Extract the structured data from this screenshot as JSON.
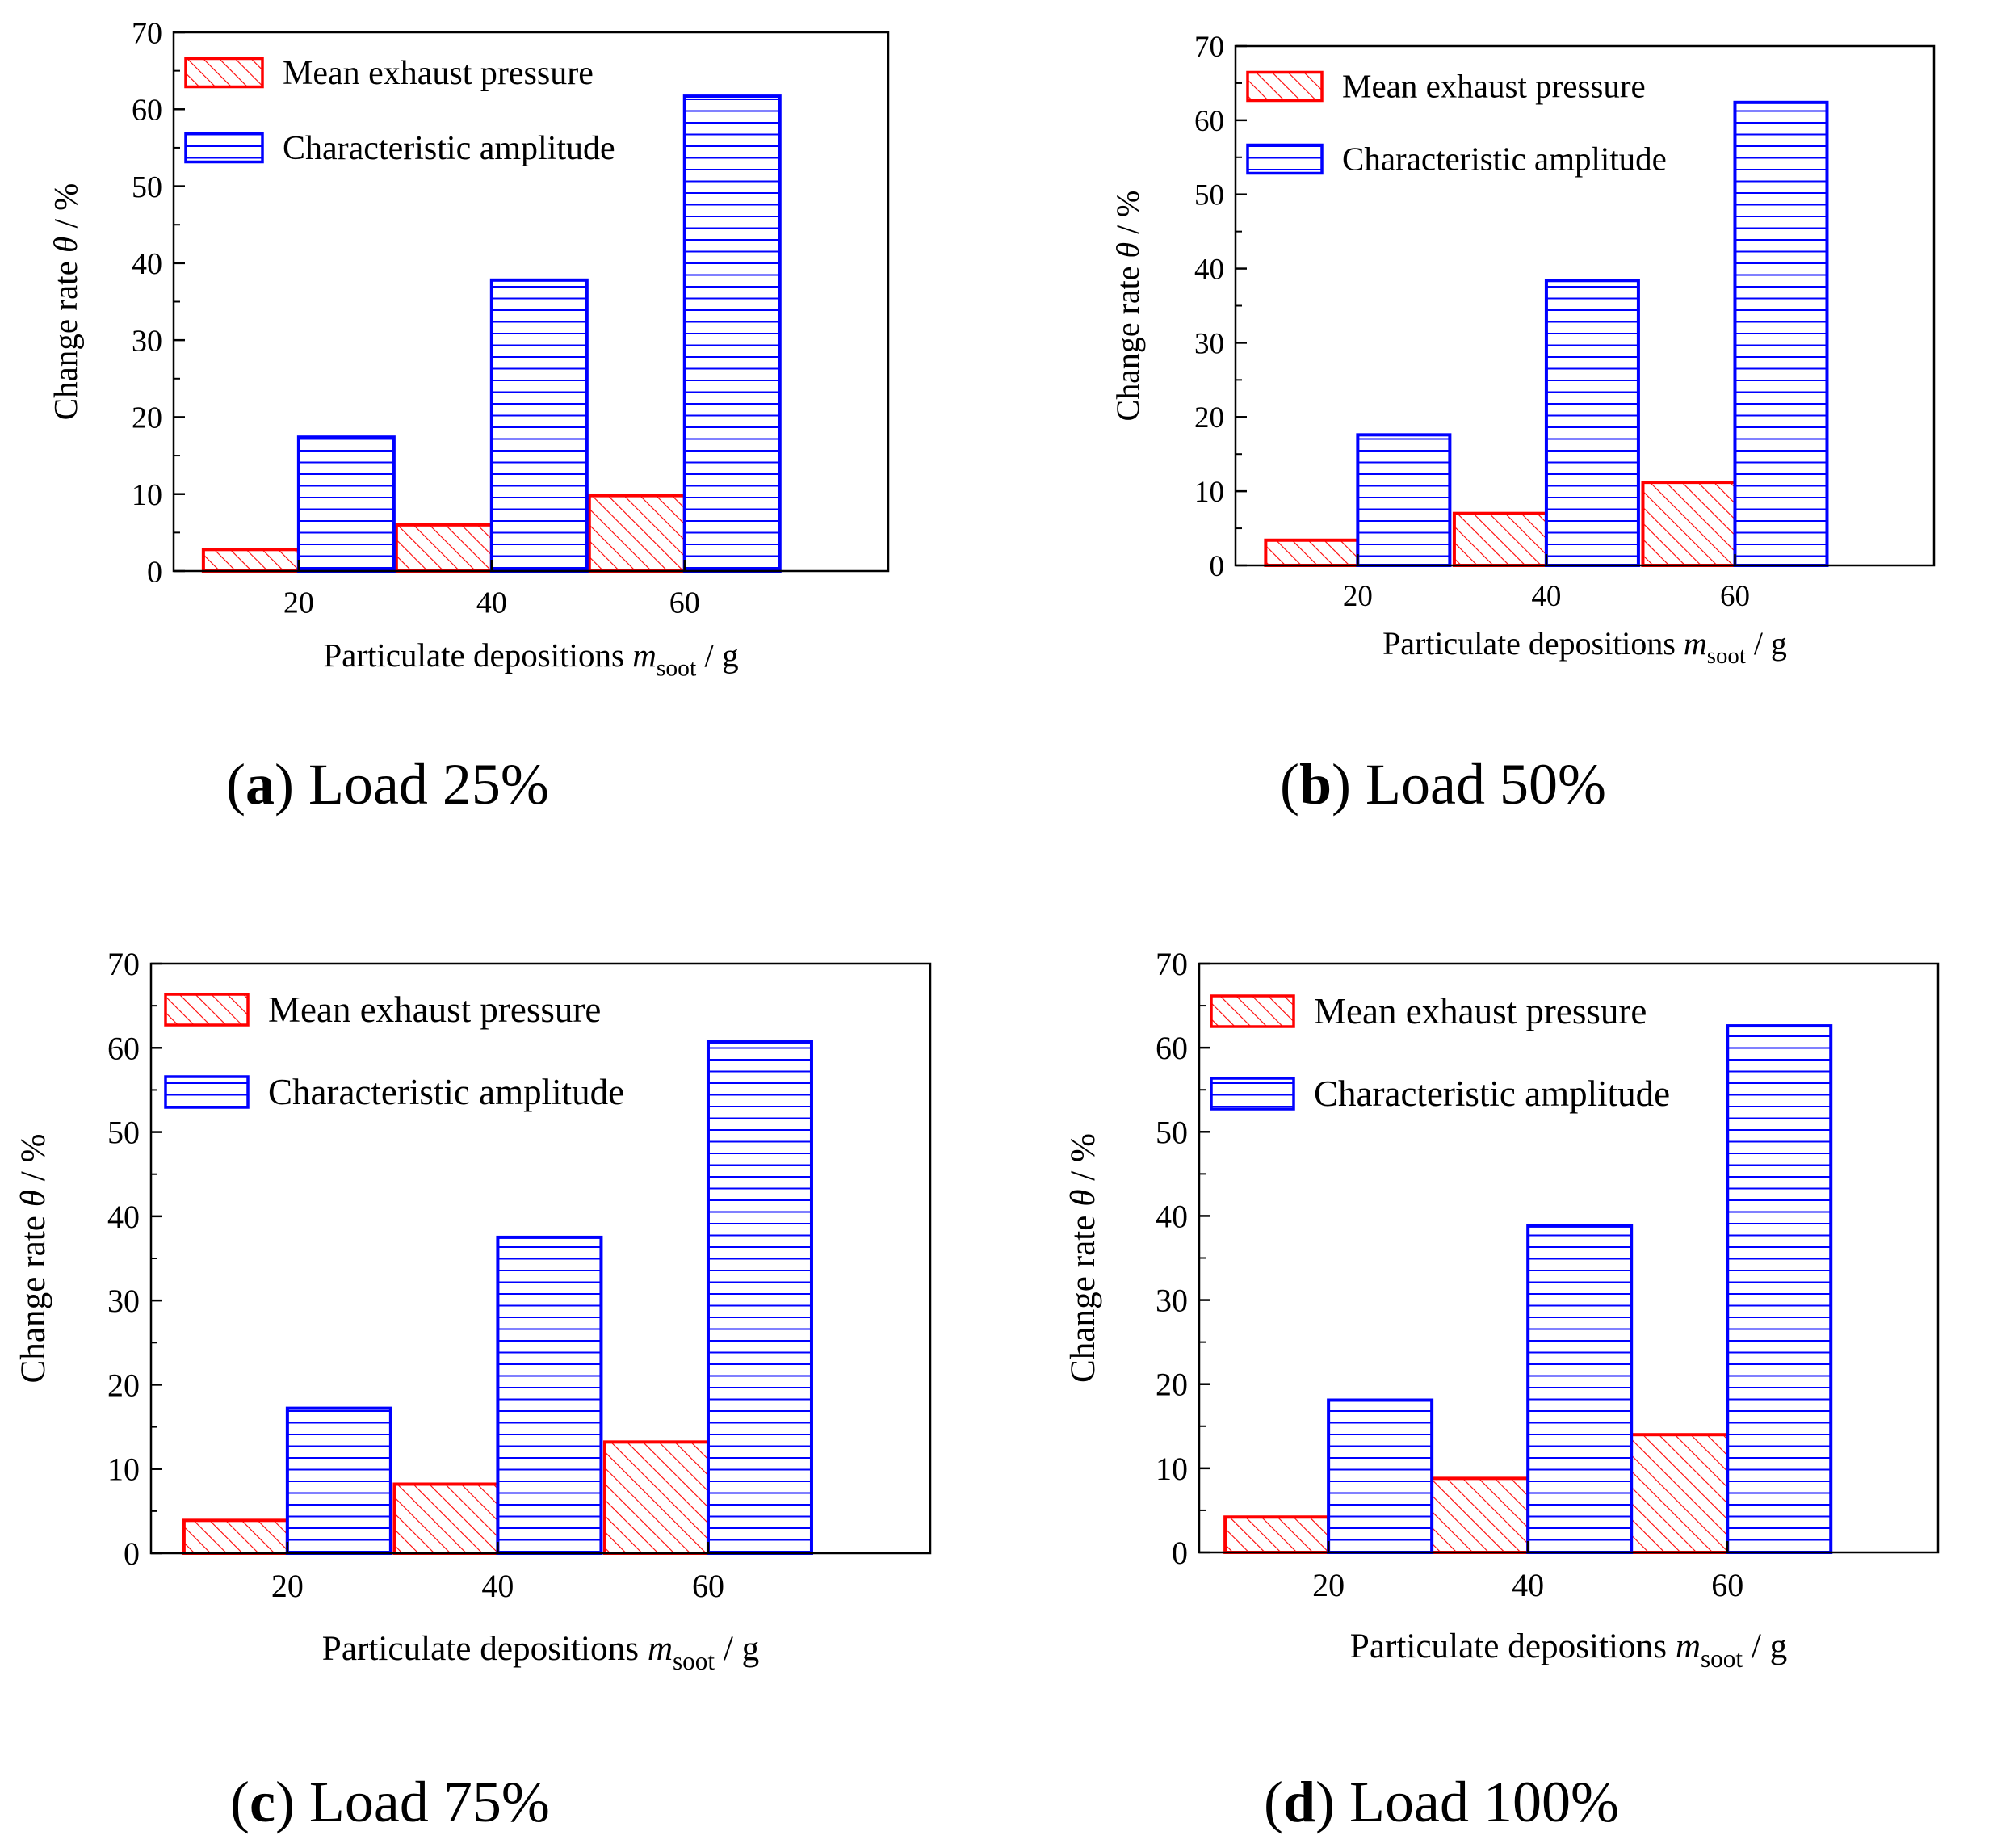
{
  "chart_data": [
    {
      "type": "bar",
      "caption_letter": "a",
      "caption_text": "Load 25%",
      "categories": [
        "20",
        "40",
        "60"
      ],
      "series": [
        {
          "name": "Mean exhaust pressure",
          "values": [
            2.8,
            6.0,
            9.8
          ]
        },
        {
          "name": "Characteristic amplitude",
          "values": [
            17.4,
            37.8,
            61.7
          ]
        }
      ],
      "xlabel": "Particulate depositions",
      "xlabel_symbol": "m",
      "xlabel_subscript": "soot",
      "xlabel_unit": "/  g",
      "ylabel": "Change rate",
      "ylabel_symbol": "θ",
      "ylabel_unit": "/ %",
      "ylim": [
        0,
        70
      ],
      "yticks": [
        "0",
        "10",
        "20",
        "30",
        "40",
        "50",
        "60",
        "70"
      ],
      "legend_placement": "top-left",
      "grid": false
    },
    {
      "type": "bar",
      "caption_letter": "b",
      "caption_text": "Load 50%",
      "categories": [
        "20",
        "40",
        "60"
      ],
      "series": [
        {
          "name": "Mean exhaust pressure",
          "values": [
            3.4,
            7.0,
            11.2
          ]
        },
        {
          "name": "Characteristic amplitude",
          "values": [
            17.6,
            38.4,
            62.4
          ]
        }
      ],
      "xlabel": "Particulate depositions",
      "xlabel_symbol": "m",
      "xlabel_subscript": "soot",
      "xlabel_unit": "/  g",
      "ylabel": "Change rate",
      "ylabel_symbol": "θ",
      "ylabel_unit": "/ %",
      "ylim": [
        0,
        70
      ],
      "yticks": [
        "0",
        "10",
        "20",
        "30",
        "40",
        "50",
        "60",
        "70"
      ],
      "legend_placement": "top-left",
      "grid": false
    },
    {
      "type": "bar",
      "caption_letter": "c",
      "caption_text": "Load 75%",
      "categories": [
        "20",
        "40",
        "60"
      ],
      "series": [
        {
          "name": "Mean exhaust pressure",
          "values": [
            3.9,
            8.2,
            13.2
          ]
        },
        {
          "name": "Characteristic amplitude",
          "values": [
            17.2,
            37.5,
            60.7
          ]
        }
      ],
      "xlabel": "Particulate depositions",
      "xlabel_symbol": "m",
      "xlabel_subscript": "soot",
      "xlabel_unit": "/  g",
      "ylabel": "Change rate",
      "ylabel_symbol": "θ",
      "ylabel_unit": "/ %",
      "ylim": [
        0,
        70
      ],
      "yticks": [
        "0",
        "10",
        "20",
        "30",
        "40",
        "50",
        "60",
        "70"
      ],
      "legend_placement": "top-left",
      "grid": false
    },
    {
      "type": "bar",
      "caption_letter": "d",
      "caption_text": "Load 100%",
      "categories": [
        "20",
        "40",
        "60"
      ],
      "series": [
        {
          "name": "Mean exhaust pressure",
          "values": [
            4.2,
            8.8,
            14.0
          ]
        },
        {
          "name": "Characteristic amplitude",
          "values": [
            18.1,
            38.8,
            62.6
          ]
        }
      ],
      "xlabel": "Particulate depositions",
      "xlabel_symbol": "m",
      "xlabel_subscript": "soot",
      "xlabel_unit": "/  g",
      "ylabel": "Change rate",
      "ylabel_symbol": "θ",
      "ylabel_unit": "/ %",
      "ylim": [
        0,
        70
      ],
      "yticks": [
        "0",
        "10",
        "20",
        "30",
        "40",
        "50",
        "60",
        "70"
      ],
      "legend_placement": "top-left",
      "grid": false
    }
  ],
  "colors": {
    "mean_exhaust_pressure": "#ff0000",
    "characteristic_amplitude": "#0000ff",
    "axis": "#000000"
  },
  "patterns": {
    "mean_exhaust_pressure": "diagonal-hatch",
    "characteristic_amplitude": "horizontal-lines"
  }
}
